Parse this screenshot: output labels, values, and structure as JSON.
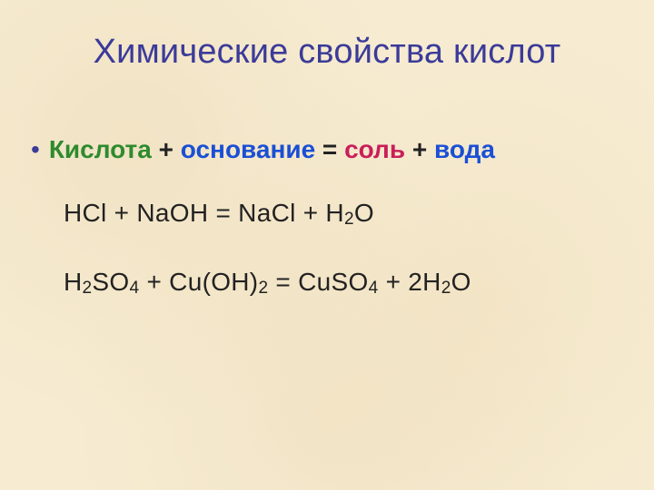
{
  "colors": {
    "title": "#3b3b99",
    "bullet": "#3b3b99",
    "acid": "#2e8b2e",
    "base": "#1a4fd6",
    "salt": "#c81f5a",
    "water": "#1a4fd6",
    "plus_equals": "#222222",
    "equation": "#222222",
    "background": "#f7ecd2"
  },
  "title": "Химические свойства кислот",
  "title_fontsize": 38,
  "scheme": {
    "acid": "Кислота",
    "plus1": " + ",
    "base": "основание",
    "equals": " = ",
    "salt": "соль",
    "plus2": " + ",
    "water": "вода",
    "fontsize": 28
  },
  "equations": [
    {
      "tokens": [
        {
          "t": "HCl + NaOH  =   NaCl + H"
        },
        {
          "t": "2",
          "sub": true
        },
        {
          "t": "O"
        }
      ]
    },
    {
      "tokens": [
        {
          "t": "H"
        },
        {
          "t": "2",
          "sub": true
        },
        {
          "t": "SO"
        },
        {
          "t": "4",
          "sub": true
        },
        {
          "t": " + Cu(OH)"
        },
        {
          "t": "2",
          "sub": true
        },
        {
          "t": " =   CuSO"
        },
        {
          "t": "4",
          "sub": true
        },
        {
          "t": " + 2H"
        },
        {
          "t": "2",
          "sub": true
        },
        {
          "t": "O"
        }
      ]
    }
  ],
  "equation_fontsize": 28
}
